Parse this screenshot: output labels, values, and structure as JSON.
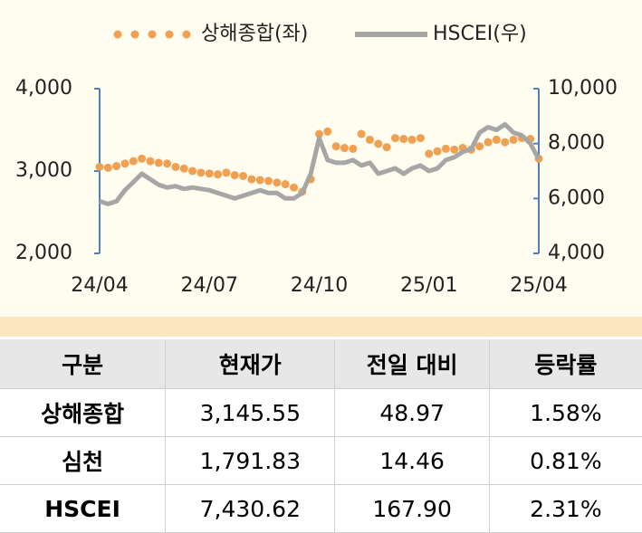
{
  "chart_data": {
    "type": "line",
    "categories": [
      "24/04",
      null,
      null,
      null,
      null,
      null,
      null,
      null,
      null,
      null,
      null,
      null,
      null,
      "24/07",
      null,
      null,
      null,
      null,
      null,
      null,
      null,
      null,
      null,
      null,
      null,
      null,
      "24/10",
      null,
      null,
      null,
      null,
      null,
      null,
      null,
      null,
      null,
      null,
      null,
      null,
      "25/01",
      null,
      null,
      null,
      null,
      null,
      null,
      null,
      null,
      null,
      null,
      null,
      null,
      "25/04"
    ],
    "series": [
      {
        "name": "상해종합(좌)",
        "color": "#f0a050",
        "style": "dots",
        "values": [
          3050,
          3040,
          3060,
          3090,
          3120,
          3150,
          3120,
          3100,
          3090,
          3050,
          3030,
          3000,
          2980,
          2970,
          2960,
          2980,
          2950,
          2940,
          2900,
          2890,
          2880,
          2860,
          2840,
          2800,
          2750,
          2900,
          3450,
          3480,
          3300,
          3280,
          3270,
          3450,
          3380,
          3330,
          3290,
          3400,
          3390,
          3380,
          3400,
          3210,
          3240,
          3270,
          3260,
          3280,
          3260,
          3300,
          3350,
          3380,
          3350,
          3380,
          3400,
          3390,
          3150
        ]
      },
      {
        "name": "HSCEI(우)",
        "color": "#a6a6a6",
        "style": "line",
        "axis": "y2",
        "values": [
          5900,
          5800,
          5900,
          6300,
          6600,
          6900,
          6700,
          6500,
          6400,
          6450,
          6350,
          6400,
          6350,
          6300,
          6200,
          6100,
          6000,
          6100,
          6200,
          6300,
          6200,
          6200,
          6000,
          6000,
          6200,
          6900,
          8200,
          7400,
          7300,
          7300,
          7400,
          7200,
          7300,
          6900,
          7000,
          7100,
          6900,
          7100,
          7200,
          7000,
          7100,
          7400,
          7500,
          7700,
          7800,
          8400,
          8600,
          8500,
          8700,
          8400,
          8300,
          8000,
          7430
        ]
      }
    ],
    "ylim": [
      2000,
      4000
    ],
    "yticks": [
      {
        "value": 2000,
        "label": "2,000"
      },
      {
        "value": 3000,
        "label": "3,000"
      },
      {
        "value": 4000,
        "label": "4,000"
      }
    ],
    "y2lim": [
      4000,
      10000
    ],
    "y2ticks": [
      {
        "value": 4000,
        "label": "4,000"
      },
      {
        "value": 6000,
        "label": "6,000"
      },
      {
        "value": 8000,
        "label": "8,000"
      },
      {
        "value": 10000,
        "label": "10,000"
      }
    ],
    "legend": "top"
  },
  "table": {
    "header": [
      "구분",
      "현재가",
      "전일 대비",
      "등락률"
    ],
    "rows": [
      [
        "상해종합",
        "3,145.55",
        "48.97",
        "1.58%"
      ],
      [
        "심천",
        "1,791.83",
        "14.46",
        "0.81%"
      ],
      [
        "HSCEI",
        "7,430.62",
        "167.90",
        "2.31%"
      ]
    ]
  }
}
